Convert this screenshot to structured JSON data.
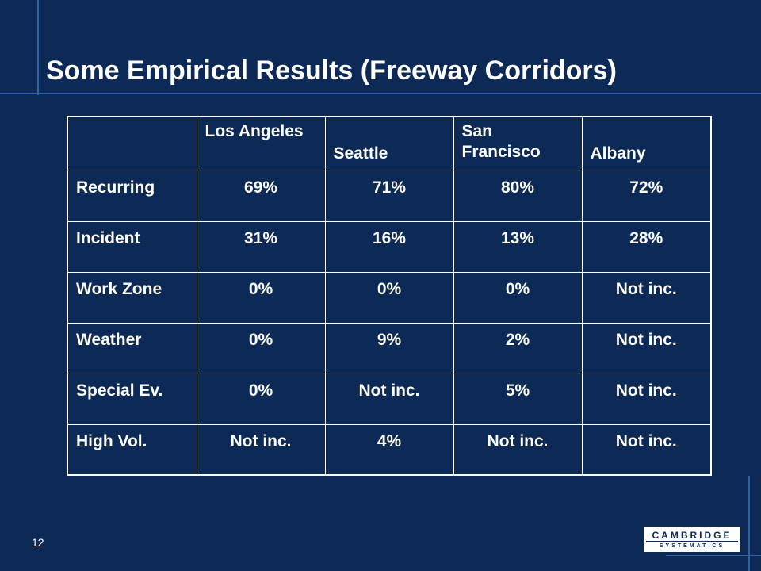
{
  "slide": {
    "title": "Some Empirical Results (Freeway Corridors)",
    "page_number": "12"
  },
  "table": {
    "headers": [
      "",
      "Los Angeles",
      "Seattle",
      "San Francisco",
      "Albany"
    ],
    "rows": [
      {
        "label": "Recurring",
        "values": [
          "69%",
          "71%",
          "80%",
          "72%"
        ]
      },
      {
        "label": "Incident",
        "values": [
          "31%",
          "16%",
          "13%",
          "28%"
        ]
      },
      {
        "label": "Work Zone",
        "values": [
          "0%",
          "0%",
          "0%",
          "Not inc."
        ]
      },
      {
        "label": "Weather",
        "values": [
          "0%",
          "9%",
          "2%",
          "Not inc."
        ]
      },
      {
        "label": "Special Ev.",
        "values": [
          "0%",
          "Not inc.",
          "5%",
          "Not inc."
        ]
      },
      {
        "label": "High Vol.",
        "values": [
          "Not inc.",
          "4%",
          "Not inc.",
          "Not inc."
        ]
      }
    ]
  },
  "logo": {
    "name": "CAMBRIDGE",
    "subtitle": "SYSTEMATICS"
  },
  "colors": {
    "background": "#0c2a55",
    "accent_line": "#2f62a8",
    "text": "#ffffff"
  }
}
